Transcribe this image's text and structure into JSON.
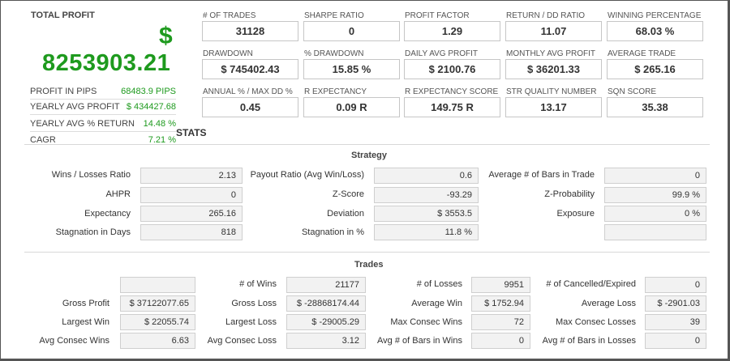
{
  "total_profit": {
    "title": "TOTAL PROFIT",
    "currency_symbol": "$",
    "value": "8253903.21",
    "rows": [
      {
        "label": "PROFIT IN PIPS",
        "value": "68483.9 PIPS"
      },
      {
        "label": "YEARLY AVG PROFIT",
        "value": "$ 434427.68"
      },
      {
        "label": "YEARLY AVG % RETURN",
        "value": "14.48 %"
      },
      {
        "label": "CAGR",
        "value": "7.21 %"
      }
    ]
  },
  "metrics": [
    {
      "label": "# OF TRADES",
      "value": "31128"
    },
    {
      "label": "SHARPE RATIO",
      "value": "0"
    },
    {
      "label": "PROFIT FACTOR",
      "value": "1.29"
    },
    {
      "label": "RETURN / DD RATIO",
      "value": "11.07"
    },
    {
      "label": "WINNING PERCENTAGE",
      "value": "68.03 %"
    },
    {
      "label": "DRAWDOWN",
      "value": "$ 745402.43"
    },
    {
      "label": "% DRAWDOWN",
      "value": "15.85 %"
    },
    {
      "label": "DAILY AVG PROFIT",
      "value": "$ 2100.76"
    },
    {
      "label": "MONTHLY AVG PROFIT",
      "value": "$ 36201.33"
    },
    {
      "label": "AVERAGE TRADE",
      "value": "$ 265.16"
    },
    {
      "label": "ANNUAL % / MAX DD %",
      "value": "0.45"
    },
    {
      "label": "R EXPECTANCY",
      "value": "0.09 R"
    },
    {
      "label": "R EXPECTANCY SCORE",
      "value": "149.75 R"
    },
    {
      "label": "STR QUALITY NUMBER",
      "value": "13.17"
    },
    {
      "label": "SQN SCORE",
      "value": "35.38"
    }
  ],
  "stats_title": "STATS",
  "strategy": {
    "title": "Strategy",
    "rows": [
      [
        {
          "label": "Wins / Losses Ratio",
          "value": "2.13"
        },
        {
          "label": "Payout Ratio (Avg Win/Loss)",
          "value": "0.6"
        },
        {
          "label": "Average # of Bars in Trade",
          "value": "0"
        }
      ],
      [
        {
          "label": "AHPR",
          "value": "0"
        },
        {
          "label": "Z-Score",
          "value": "-93.29"
        },
        {
          "label": "Z-Probability",
          "value": "99.9 %"
        }
      ],
      [
        {
          "label": "Expectancy",
          "value": "265.16"
        },
        {
          "label": "Deviation",
          "value": "$ 3553.5"
        },
        {
          "label": "Exposure",
          "value": "0 %"
        }
      ],
      [
        {
          "label": "Stagnation in Days",
          "value": "818"
        },
        {
          "label": "Stagnation in %",
          "value": "11.8 %"
        },
        {
          "label": "",
          "value": ""
        }
      ]
    ]
  },
  "trades": {
    "title": "Trades",
    "rows": [
      [
        {
          "label": "",
          "value": ""
        },
        {
          "label": "# of Wins",
          "value": "21177"
        },
        {
          "label": "# of Losses",
          "value": "9951"
        },
        {
          "label": "# of Cancelled/Expired",
          "value": "0"
        }
      ],
      [
        {
          "label": "Gross Profit",
          "value": "$ 37122077.65"
        },
        {
          "label": "Gross Loss",
          "value": "$ -28868174.44"
        },
        {
          "label": "Average Win",
          "value": "$ 1752.94"
        },
        {
          "label": "Average Loss",
          "value": "$ -2901.03"
        }
      ],
      [
        {
          "label": "Largest Win",
          "value": "$ 22055.74"
        },
        {
          "label": "Largest Loss",
          "value": "$ -29005.29"
        },
        {
          "label": "Max Consec Wins",
          "value": "72"
        },
        {
          "label": "Max Consec Losses",
          "value": "39"
        }
      ],
      [
        {
          "label": "Avg Consec Wins",
          "value": "6.63"
        },
        {
          "label": "Avg Consec Loss",
          "value": "3.12"
        },
        {
          "label": "Avg # of Bars in Wins",
          "value": "0"
        },
        {
          "label": "Avg # of Bars in Losses",
          "value": "0"
        }
      ]
    ]
  }
}
